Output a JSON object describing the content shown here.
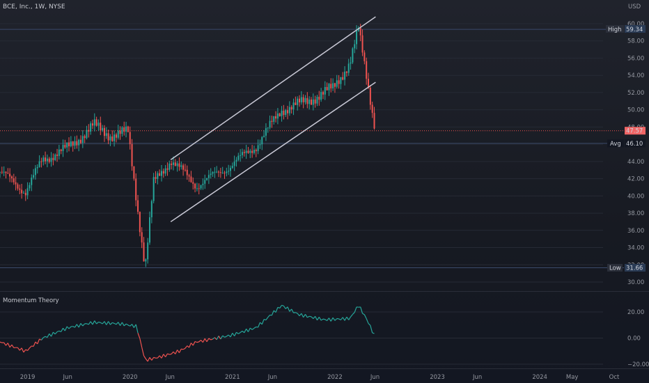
{
  "header": {
    "symbol_title": "BCE, Inc., 1W, NYSE",
    "currency": "USD"
  },
  "price_scale": {
    "ticks": [
      "60.00",
      "58.00",
      "56.00",
      "54.00",
      "52.00",
      "50.00",
      "48.00",
      "46.00",
      "44.00",
      "42.00",
      "40.00",
      "38.00",
      "36.00",
      "34.00",
      "32.00",
      "30.00"
    ]
  },
  "badges": {
    "high_label": "High",
    "high_value": "59.34",
    "last_value": "47.57",
    "avg_label": "Avg",
    "avg_value": "46.10",
    "low_label": "Low",
    "low_value": "31.66"
  },
  "oscillator": {
    "title": "Momentum Theory",
    "ticks": [
      "20.00",
      "0.00",
      "−20.00"
    ]
  },
  "time_axis": {
    "labels": [
      "2019",
      "Jun",
      "2020",
      "Jun",
      "2021",
      "Jun",
      "2022",
      "Jun",
      "2023",
      "Jun",
      "2024",
      "May",
      "Oct"
    ]
  },
  "colors": {
    "up": "#26a69a",
    "down": "#ef5350",
    "channel": "#c9c9d6",
    "background": "#131722",
    "last_price_badge": "#f06565",
    "label_badge": "#2a2e39"
  },
  "chart_data": [
    {
      "type": "candlestick",
      "title": "BCE, Inc., 1W, NYSE",
      "y_range": [
        29.5,
        61.5
      ],
      "x_labels": [
        "2019",
        "Jun",
        "2020",
        "Jun",
        "2021",
        "Jun",
        "2022",
        "Jun",
        "2023",
        "Jun",
        "2024",
        "May",
        "Oct"
      ],
      "key_points": [
        {
          "t": "2018-10",
          "close": 42.8
        },
        {
          "t": "2019-01",
          "close": 40.5
        },
        {
          "t": "2019-03",
          "close": 44.2
        },
        {
          "t": "2019-06",
          "close": 45.6
        },
        {
          "t": "2019-09",
          "close": 48.2
        },
        {
          "t": "2019-11",
          "close": 47.0
        },
        {
          "t": "2020-01",
          "close": 47.4
        },
        {
          "t": "2020-03",
          "close": 31.66
        },
        {
          "t": "2020-04",
          "close": 41.5
        },
        {
          "t": "2020-06",
          "close": 44.2
        },
        {
          "t": "2020-09",
          "close": 41.2
        },
        {
          "t": "2021-01",
          "close": 43.5
        },
        {
          "t": "2021-04",
          "close": 45.8
        },
        {
          "t": "2021-07",
          "close": 50.0
        },
        {
          "t": "2021-10",
          "close": 51.0
        },
        {
          "t": "2022-01",
          "close": 52.5
        },
        {
          "t": "2022-03",
          "close": 55.5
        },
        {
          "t": "2022-04",
          "close": 59.34
        },
        {
          "t": "2022-05",
          "close": 53.5
        },
        {
          "t": "2022-06",
          "close": 47.57
        }
      ],
      "high": 59.34,
      "low": 31.66,
      "average": 46.1,
      "last": 47.57,
      "channel": {
        "upper": [
          {
            "t": "2020-06",
            "price": 44.2
          },
          {
            "t": "2022-06",
            "price": 60.8
          }
        ],
        "lower": [
          {
            "t": "2020-06",
            "price": 37.0
          },
          {
            "t": "2022-06",
            "price": 53.2
          }
        ]
      }
    },
    {
      "type": "line",
      "title": "Momentum Theory",
      "y_range": [
        -21,
        28
      ],
      "series": [
        {
          "points": [
            {
              "t": "2018-10",
              "v": -3
            },
            {
              "t": "2019-01",
              "v": -10
            },
            {
              "t": "2019-03",
              "v": 0
            },
            {
              "t": "2019-06",
              "v": 8
            },
            {
              "t": "2019-09",
              "v": 12
            },
            {
              "t": "2019-12",
              "v": 11
            },
            {
              "t": "2020-02",
              "v": 9
            },
            {
              "t": "2020-03",
              "v": -17
            },
            {
              "t": "2020-05",
              "v": -14
            },
            {
              "t": "2020-07",
              "v": -10
            },
            {
              "t": "2020-09",
              "v": -3
            },
            {
              "t": "2021-01",
              "v": 2
            },
            {
              "t": "2021-04",
              "v": 8
            },
            {
              "t": "2021-07",
              "v": 25
            },
            {
              "t": "2021-09",
              "v": 18
            },
            {
              "t": "2021-12",
              "v": 14
            },
            {
              "t": "2022-03",
              "v": 15
            },
            {
              "t": "2022-04",
              "v": 25
            },
            {
              "t": "2022-05",
              "v": 14
            },
            {
              "t": "2022-06",
              "v": 0
            }
          ]
        }
      ]
    }
  ]
}
